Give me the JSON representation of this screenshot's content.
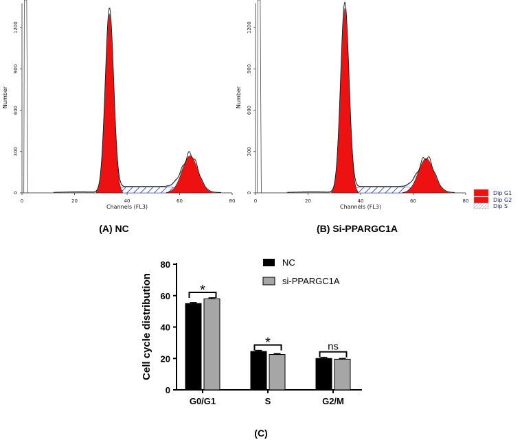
{
  "chart_data": [
    {
      "type": "area",
      "title": "(A) NC",
      "xlabel": "Channels (FL3)",
      "ylabel": "Number",
      "xlim": [
        0,
        80
      ],
      "ylim": [
        0,
        1400
      ],
      "xticks": [
        "0",
        "20",
        "40",
        "60",
        "80"
      ],
      "yticks": [
        "0",
        "300",
        "600",
        "900",
        "1200"
      ],
      "peaks": {
        "G1": {
          "center": 33.3,
          "height": 1300
        },
        "G2": {
          "center": 64.0,
          "height": 270
        }
      }
    },
    {
      "type": "area",
      "title": "(B) Si-PPARGC1A",
      "xlabel": "Channels (FL3)",
      "ylabel": "Number",
      "xlim": [
        0,
        80
      ],
      "ylim": [
        0,
        1400
      ],
      "xticks": [
        "0",
        "20",
        "40",
        "60",
        "80"
      ],
      "yticks": [
        "0",
        "300",
        "600",
        "900",
        "1200"
      ],
      "peaks": {
        "G1": {
          "center": 34.0,
          "height": 1340
        },
        "G2": {
          "center": 65.0,
          "height": 250
        }
      },
      "legend": [
        "Dip G1",
        "Dip G2",
        "Dip S"
      ]
    },
    {
      "type": "bar",
      "title": "(C)",
      "ylabel": "Cell cycle distribution",
      "categories": [
        "G0/G1",
        "S",
        "G2/M"
      ],
      "yticks": [
        "0",
        "20",
        "40",
        "60",
        "80"
      ],
      "ylim": [
        0,
        80
      ],
      "series": [
        {
          "name": "NC",
          "values": [
            55.0,
            24.5,
            20.0
          ],
          "errors": [
            0.6,
            0.6,
            0.7
          ],
          "color": "#000000"
        },
        {
          "name": "si-PPARGC1A",
          "values": [
            58.0,
            22.5,
            19.5
          ],
          "errors": [
            0.6,
            0.6,
            0.5
          ],
          "color": "#a6a6a6"
        }
      ],
      "significance": [
        "*",
        "*",
        "ns"
      ]
    }
  ],
  "colors": {
    "peak": "#ee1111",
    "hatch": "#1a2a9a",
    "bar_nc": "#000000",
    "bar_si": "#a6a6a6"
  }
}
